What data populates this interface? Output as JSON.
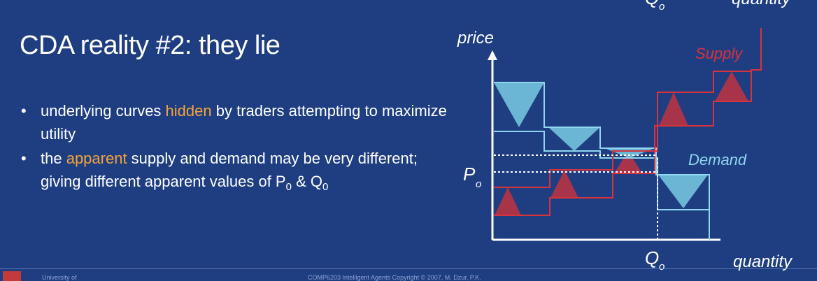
{
  "slide": {
    "title": "CDA reality #2: they lie",
    "bullet1_part1": "underlying curves ",
    "bullet1_highlight": "hidden",
    "bullet1_part2": " by traders attempting to maximize utility",
    "bullet2_part1": "the ",
    "bullet2_highlight": "apparent",
    "bullet2_part2": " supply and demand may be very different; giving different apparent values of P",
    "bullet2_sub1": "0",
    "bullet2_mid": " & Q",
    "bullet2_sub2": "0"
  },
  "diagram": {
    "price_label": "price",
    "quantity_label": "quantity",
    "supply_label": "Supply",
    "demand_label": "Demand",
    "p0_label": "P",
    "p0_sub": "o",
    "q0_label": "Q",
    "q0_sub": "o",
    "top_cut_q0": "Q",
    "top_cut_q0_sub": "o",
    "top_cut_quantity": "quantity"
  },
  "footer": {
    "left": "University of",
    "center": "COMP6203 Intelligent Agents  Copyright © 2007, M. Dzur, P.K."
  },
  "colors": {
    "background": "#1f3e82",
    "highlight": "#f2a43a",
    "supply": "#d6333c",
    "supply_fill": "#a8344a",
    "demand": "#8fd6ee",
    "demand_fill": "#6ab6d4"
  }
}
